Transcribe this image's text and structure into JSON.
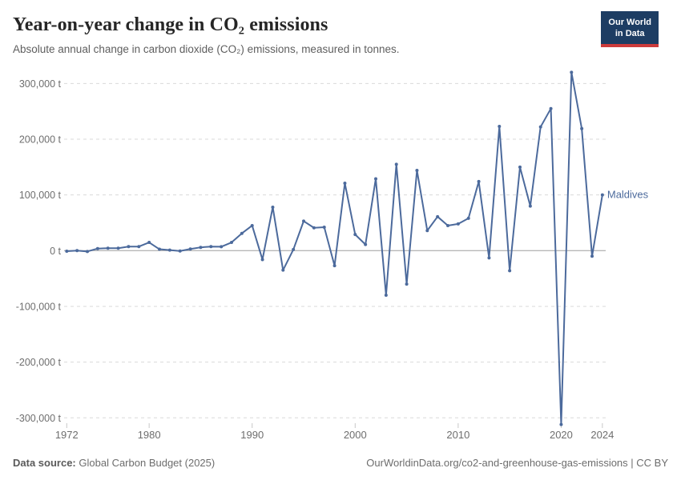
{
  "header": {
    "title": "Year-on-year change in CO₂ emissions",
    "subtitle": "Absolute annual change in carbon dioxide (CO₂) emissions, measured in tonnes.",
    "logo": {
      "line1": "Our World",
      "line2": "in Data"
    }
  },
  "chart_data": {
    "type": "line",
    "title": "Year-on-year change in CO₂ emissions",
    "subtitle": "Absolute annual change in carbon dioxide (CO₂) emissions, measured in tonnes.",
    "unit": "t",
    "grid": "horizontal-dashed",
    "legend_position": "end-of-line-label",
    "xlim": [
      1972,
      2024
    ],
    "ylim": [
      -312000,
      320000
    ],
    "x_ticks": [
      1972,
      1980,
      1990,
      2000,
      2010,
      2020,
      2024
    ],
    "y_ticks": [
      {
        "value": 300000,
        "label": "300,000 t"
      },
      {
        "value": 200000,
        "label": "200,000 t"
      },
      {
        "value": 100000,
        "label": "100,000 t"
      },
      {
        "value": 0,
        "label": "0 t"
      },
      {
        "value": -100000,
        "label": "-100,000 t"
      },
      {
        "value": -200000,
        "label": "-200,000 t"
      },
      {
        "value": -300000,
        "label": "-300,000 t"
      }
    ],
    "series": [
      {
        "name": "Maldives",
        "color": "#4c6a9c",
        "x": [
          1972,
          1973,
          1974,
          1975,
          1976,
          1977,
          1978,
          1979,
          1980,
          1981,
          1982,
          1983,
          1984,
          1985,
          1986,
          1987,
          1988,
          1989,
          1990,
          1991,
          1992,
          1993,
          1994,
          1995,
          1996,
          1997,
          1998,
          1999,
          2000,
          2001,
          2002,
          2003,
          2004,
          2005,
          2006,
          2007,
          2008,
          2009,
          2010,
          2011,
          2012,
          2013,
          2014,
          2015,
          2016,
          2017,
          2018,
          2019,
          2020,
          2021,
          2022,
          2023,
          2024
        ],
        "values": [
          -1000,
          0,
          -1500,
          3700,
          4400,
          4400,
          7300,
          7300,
          14700,
          2500,
          1000,
          -700,
          2900,
          5900,
          7300,
          7000,
          14700,
          31000,
          45000,
          -16000,
          78000,
          -35000,
          2000,
          53000,
          41000,
          42000,
          -27000,
          121000,
          29000,
          11000,
          129000,
          -80000,
          155000,
          -60000,
          144000,
          36000,
          61000,
          45000,
          48000,
          58000,
          124000,
          -13000,
          223000,
          -36000,
          150000,
          80000,
          222000,
          255000,
          -312000,
          320000,
          219000,
          -10000,
          100000
        ]
      }
    ],
    "colors": {
      "line": "#4c6a9c",
      "grid": "#d9d9d9",
      "zero_line": "#9e9e9e",
      "tick_text": "#6e6e6e",
      "tick_mark": "#c8c8c8"
    }
  },
  "footer": {
    "source_label": "Data source:",
    "source_text": "Global Carbon Budget (2025)",
    "credit": "OurWorldinData.org/co2-and-greenhouse-gas-emissions | CC BY"
  }
}
